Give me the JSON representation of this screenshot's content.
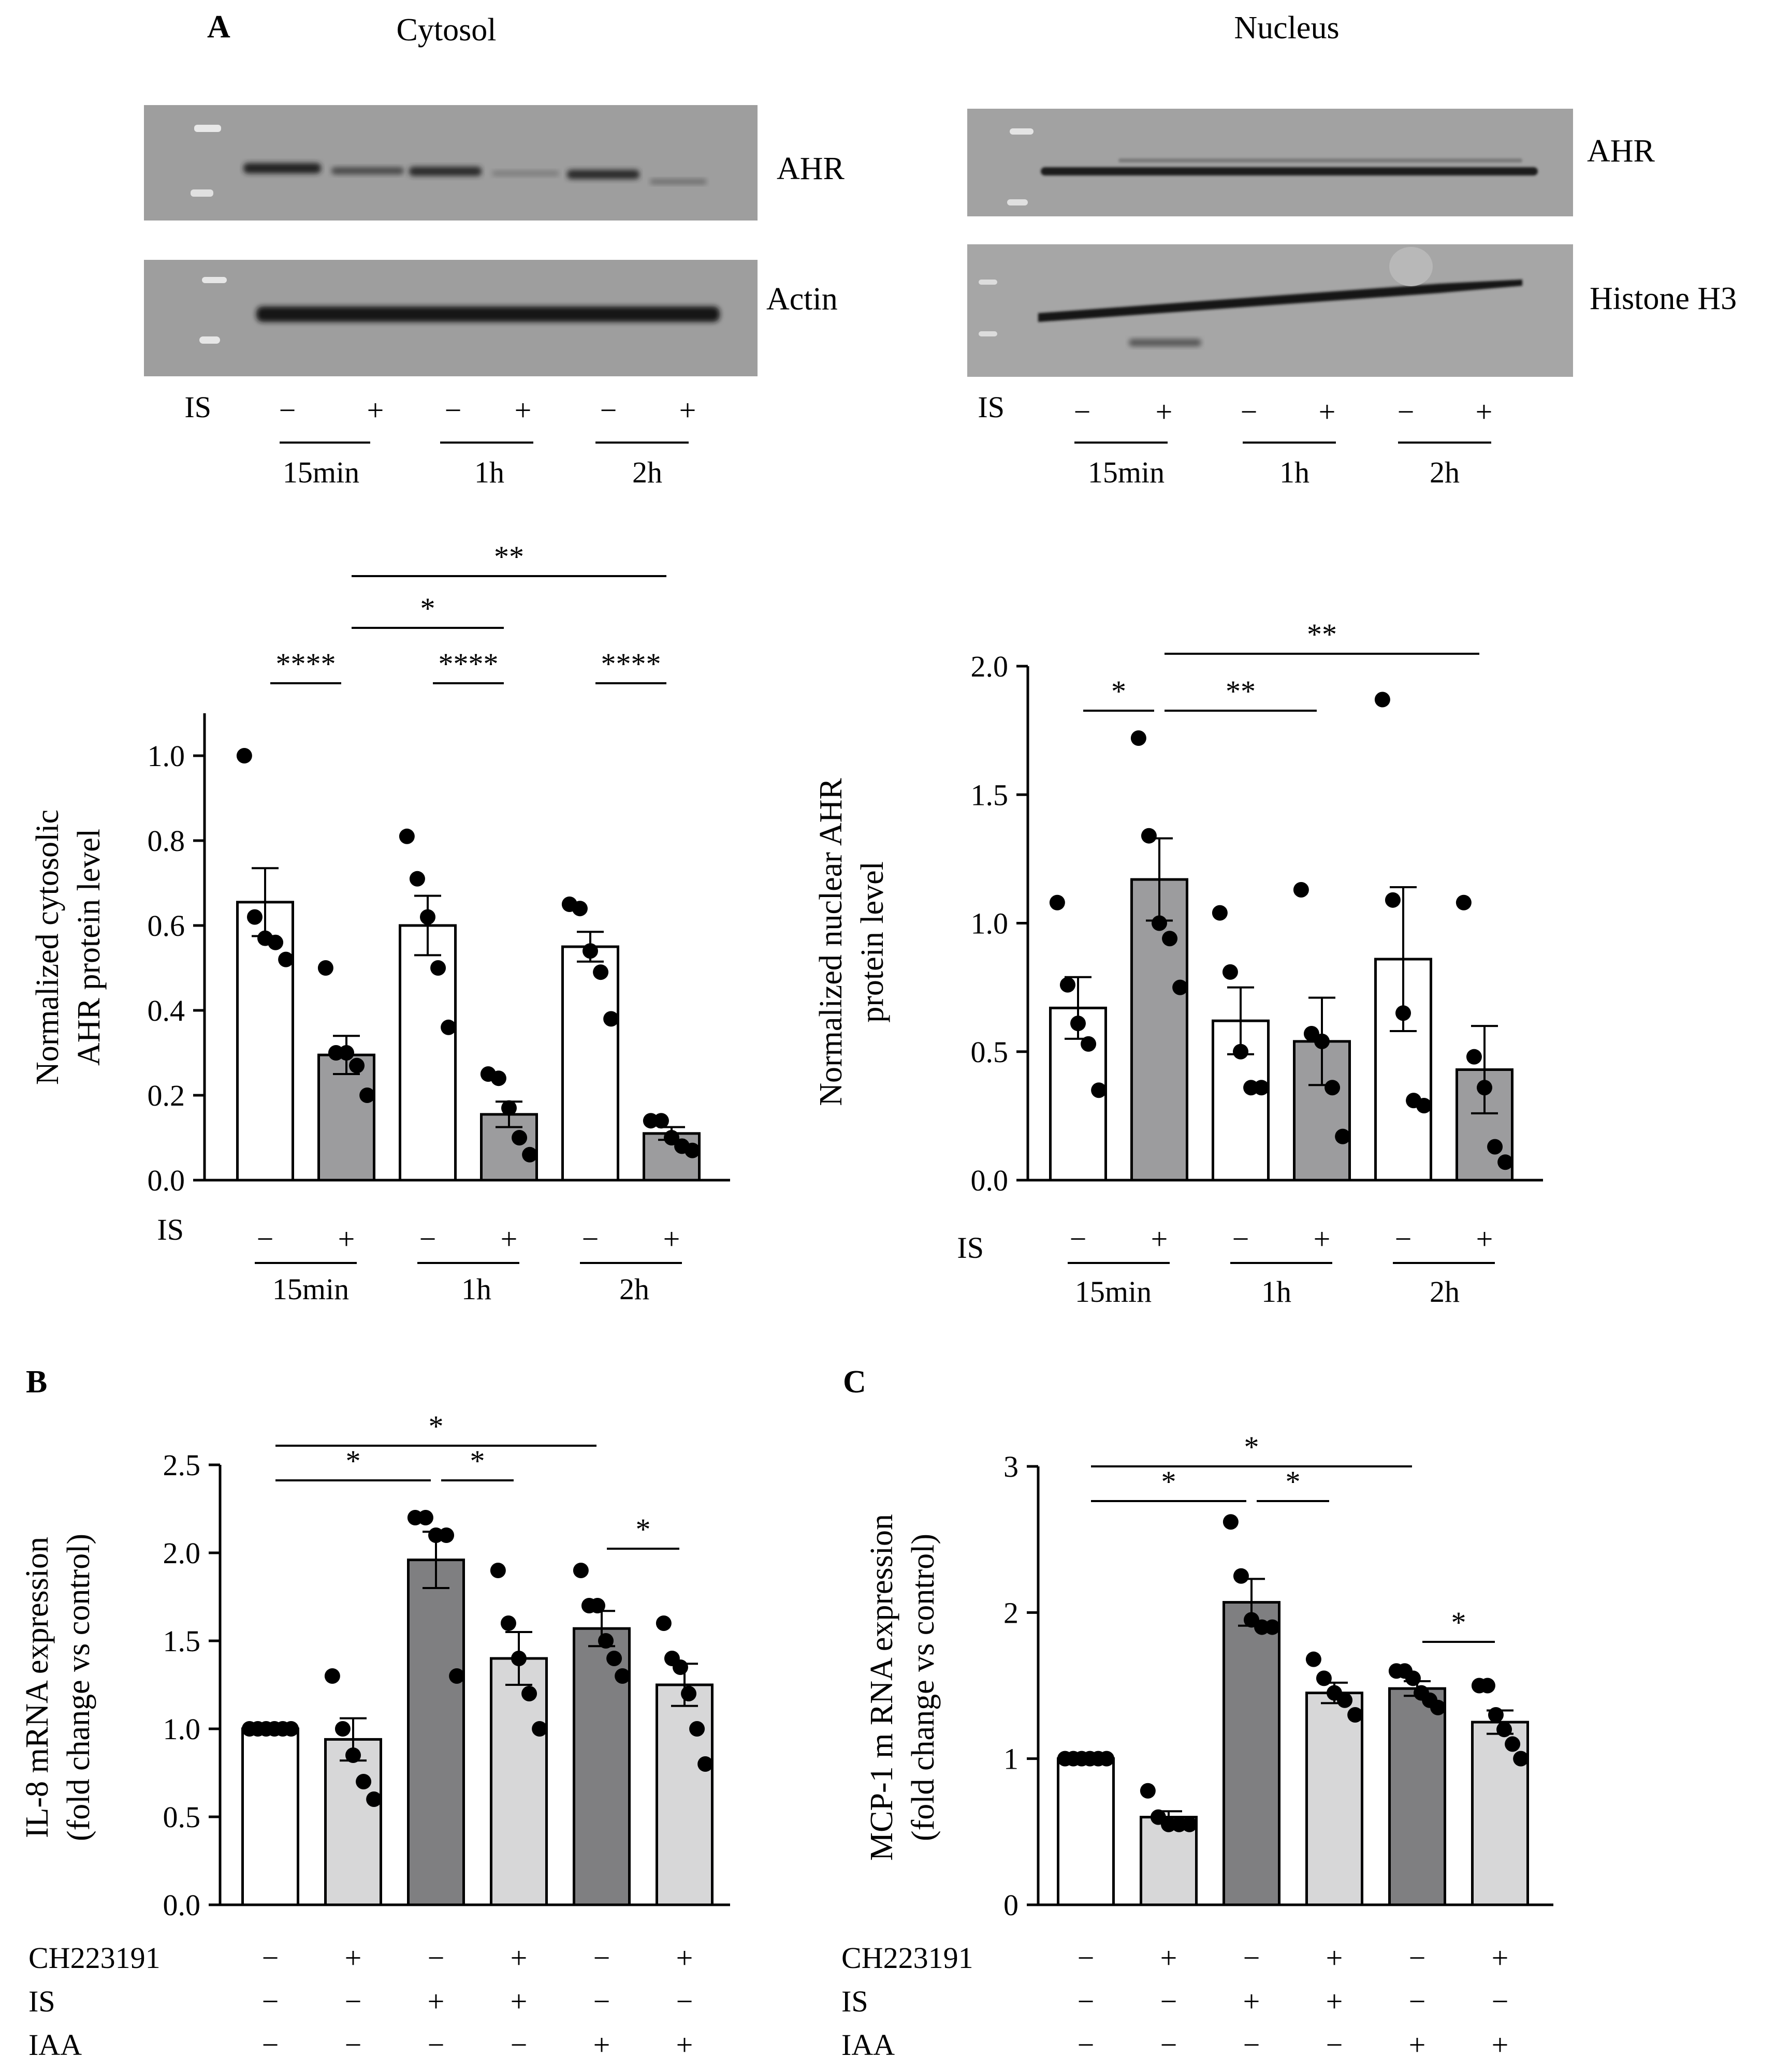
{
  "figure": {
    "panel_a": {
      "letter": "A",
      "cytosol_title": "Cytosol",
      "nucleus_title": "Nucleus",
      "blots": {
        "cyto_ahr": "AHR",
        "cyto_actin": "Actin",
        "nuc_ahr": "AHR",
        "nuc_histone": "Histone H3"
      },
      "row_label": "IS",
      "lane_signs": [
        "−",
        "+",
        "−",
        "+",
        "−",
        "+"
      ],
      "time_groups": [
        "15min",
        "1h",
        "2h"
      ]
    },
    "panel_b": {
      "letter": "B"
    },
    "panel_c": {
      "letter": "C"
    },
    "colors": {
      "open": "#ffffff",
      "gray": "#9c9c9e",
      "dark": "#7f7f81",
      "light": "#d7d7d8",
      "ink": "#000000"
    }
  },
  "chart_data": [
    {
      "id": "cyto",
      "type": "bar",
      "ylabel": [
        "Normalized cytosolic",
        "AHR protein level"
      ],
      "ylim": [
        0,
        1.1
      ],
      "ticks": [
        0.0,
        0.2,
        0.4,
        0.6,
        0.8,
        1.0
      ],
      "tick_labels": [
        "0.0",
        "0.2",
        "0.4",
        "0.6",
        "0.8",
        "1.0"
      ],
      "bars": [
        {
          "value": 0.655,
          "sem": 0.08,
          "fill": "open",
          "points": [
            1.0,
            0.62,
            0.57,
            0.56,
            0.52
          ]
        },
        {
          "value": 0.295,
          "sem": 0.045,
          "fill": "gray",
          "points": [
            0.5,
            0.3,
            0.3,
            0.27,
            0.2
          ]
        },
        {
          "value": 0.6,
          "sem": 0.07,
          "fill": "open",
          "points": [
            0.81,
            0.71,
            0.62,
            0.5,
            0.36
          ]
        },
        {
          "value": 0.155,
          "sem": 0.03,
          "fill": "gray",
          "points": [
            0.25,
            0.24,
            0.17,
            0.1,
            0.06
          ]
        },
        {
          "value": 0.55,
          "sem": 0.035,
          "fill": "open",
          "points": [
            0.65,
            0.64,
            0.54,
            0.49,
            0.38
          ]
        },
        {
          "value": 0.11,
          "sem": 0.015,
          "fill": "gray",
          "points": [
            0.14,
            0.14,
            0.1,
            0.08,
            0.07
          ]
        }
      ],
      "significance": [
        {
          "from": 0,
          "to": 1,
          "label": "****"
        },
        {
          "from": 2,
          "to": 3,
          "label": "****"
        },
        {
          "from": 4,
          "to": 5,
          "label": "****"
        },
        {
          "from": 1,
          "to": 3,
          "label": "*"
        },
        {
          "from": 1,
          "to": 5,
          "label": "**"
        }
      ],
      "row_label": "IS",
      "signs": [
        "−",
        "+",
        "−",
        "+",
        "−",
        "+"
      ],
      "groups": [
        "15min",
        "1h",
        "2h"
      ]
    },
    {
      "id": "nuc",
      "type": "bar",
      "ylabel": [
        "Normalized nuclear AHR",
        "protein level"
      ],
      "ylim": [
        0,
        2.0
      ],
      "ticks": [
        0.0,
        0.5,
        1.0,
        1.5,
        2.0
      ],
      "tick_labels": [
        "0.0",
        "0.5",
        "1.0",
        "1.5",
        "2.0"
      ],
      "bars": [
        {
          "value": 0.67,
          "sem": 0.12,
          "fill": "open",
          "points": [
            1.08,
            0.76,
            0.61,
            0.53,
            0.35
          ]
        },
        {
          "value": 1.17,
          "sem": 0.16,
          "fill": "gray",
          "points": [
            1.72,
            1.34,
            1.0,
            0.94,
            0.75
          ]
        },
        {
          "value": 0.62,
          "sem": 0.13,
          "fill": "open",
          "points": [
            1.04,
            0.81,
            0.5,
            0.36,
            0.36
          ]
        },
        {
          "value": 0.54,
          "sem": 0.17,
          "fill": "gray",
          "points": [
            1.13,
            0.57,
            0.54,
            0.36,
            0.17
          ]
        },
        {
          "value": 0.86,
          "sem": 0.28,
          "fill": "open",
          "points": [
            1.87,
            1.09,
            0.65,
            0.31,
            0.29
          ]
        },
        {
          "value": 0.43,
          "sem": 0.17,
          "fill": "gray",
          "points": [
            1.08,
            0.48,
            0.36,
            0.13,
            0.07
          ]
        }
      ],
      "significance": [
        {
          "from": 0,
          "to": 1,
          "label": "*"
        },
        {
          "from": 1,
          "to": 3,
          "label": "**"
        },
        {
          "from": 1,
          "to": 5,
          "label": "**"
        }
      ],
      "row_label": "IS",
      "signs": [
        "−",
        "+",
        "−",
        "+",
        "−",
        "+"
      ],
      "groups": [
        "15min",
        "1h",
        "2h"
      ]
    },
    {
      "id": "il8",
      "type": "bar",
      "ylabel": [
        "IL-8 mRNA expression",
        "(fold change vs control)"
      ],
      "ylim": [
        0,
        2.5
      ],
      "ticks": [
        0.0,
        0.5,
        1.0,
        1.5,
        2.0,
        2.5
      ],
      "tick_labels": [
        "0.0",
        "0.5",
        "1.0",
        "1.5",
        "2.0",
        "2.5"
      ],
      "bars": [
        {
          "value": 1.0,
          "sem": 0.0,
          "fill": "open",
          "points": [
            1.0,
            1.0,
            1.0,
            1.0,
            1.0,
            1.0
          ]
        },
        {
          "value": 0.94,
          "sem": 0.12,
          "fill": "light",
          "points": [
            1.3,
            1.0,
            0.85,
            0.7,
            0.6
          ]
        },
        {
          "value": 1.96,
          "sem": 0.16,
          "fill": "dark",
          "points": [
            2.2,
            2.2,
            2.1,
            2.1,
            1.3
          ]
        },
        {
          "value": 1.4,
          "sem": 0.15,
          "fill": "light",
          "points": [
            1.9,
            1.6,
            1.4,
            1.2,
            1.0
          ]
        },
        {
          "value": 1.57,
          "sem": 0.1,
          "fill": "dark",
          "points": [
            1.9,
            1.7,
            1.7,
            1.5,
            1.4,
            1.3
          ]
        },
        {
          "value": 1.25,
          "sem": 0.12,
          "fill": "light",
          "points": [
            1.6,
            1.4,
            1.35,
            1.2,
            1.0,
            0.8
          ]
        }
      ],
      "significance": [
        {
          "from": 0,
          "to": 2,
          "label": "*"
        },
        {
          "from": 2,
          "to": 3,
          "label": "*"
        },
        {
          "from": 0,
          "to": 4,
          "label": "*"
        },
        {
          "from": 4,
          "to": 5,
          "label": "*"
        }
      ],
      "treatment_rows": [
        {
          "label": "CH223191",
          "signs": [
            "−",
            "+",
            "−",
            "+",
            "−",
            "+"
          ]
        },
        {
          "label": "IS",
          "signs": [
            "−",
            "−",
            "+",
            "+",
            "−",
            "−"
          ]
        },
        {
          "label": "IAA",
          "signs": [
            "−",
            "−",
            "−",
            "−",
            "+",
            "+"
          ]
        }
      ]
    },
    {
      "id": "mcp1",
      "type": "bar",
      "ylabel": [
        "MCP-1 m RNA expression",
        "(fold change vs control)"
      ],
      "ylim": [
        0,
        3
      ],
      "ticks": [
        0,
        1,
        2,
        3
      ],
      "tick_labels": [
        "0",
        "1",
        "2",
        "3"
      ],
      "bars": [
        {
          "value": 1.0,
          "sem": 0.0,
          "fill": "open",
          "points": [
            1.0,
            1.0,
            1.0,
            1.0,
            1.0,
            1.0
          ]
        },
        {
          "value": 0.6,
          "sem": 0.04,
          "fill": "light",
          "points": [
            0.78,
            0.6,
            0.55,
            0.55,
            0.55
          ]
        },
        {
          "value": 2.07,
          "sem": 0.16,
          "fill": "dark",
          "points": [
            2.62,
            2.25,
            1.95,
            1.9,
            1.9
          ]
        },
        {
          "value": 1.45,
          "sem": 0.07,
          "fill": "light",
          "points": [
            1.68,
            1.55,
            1.45,
            1.4,
            1.3
          ]
        },
        {
          "value": 1.48,
          "sem": 0.05,
          "fill": "dark",
          "points": [
            1.6,
            1.6,
            1.55,
            1.45,
            1.4,
            1.35
          ]
        },
        {
          "value": 1.25,
          "sem": 0.08,
          "fill": "light",
          "points": [
            1.5,
            1.5,
            1.3,
            1.2,
            1.1,
            1.0
          ]
        }
      ],
      "significance": [
        {
          "from": 0,
          "to": 2,
          "label": "*"
        },
        {
          "from": 2,
          "to": 3,
          "label": "*"
        },
        {
          "from": 0,
          "to": 4,
          "label": "*"
        },
        {
          "from": 4,
          "to": 5,
          "label": "*"
        }
      ],
      "treatment_rows": [
        {
          "label": "CH223191",
          "signs": [
            "−",
            "+",
            "−",
            "+",
            "−",
            "+"
          ]
        },
        {
          "label": "IS",
          "signs": [
            "−",
            "−",
            "+",
            "+",
            "−",
            "−"
          ]
        },
        {
          "label": "IAA",
          "signs": [
            "−",
            "−",
            "−",
            "−",
            "+",
            "+"
          ]
        }
      ]
    }
  ]
}
